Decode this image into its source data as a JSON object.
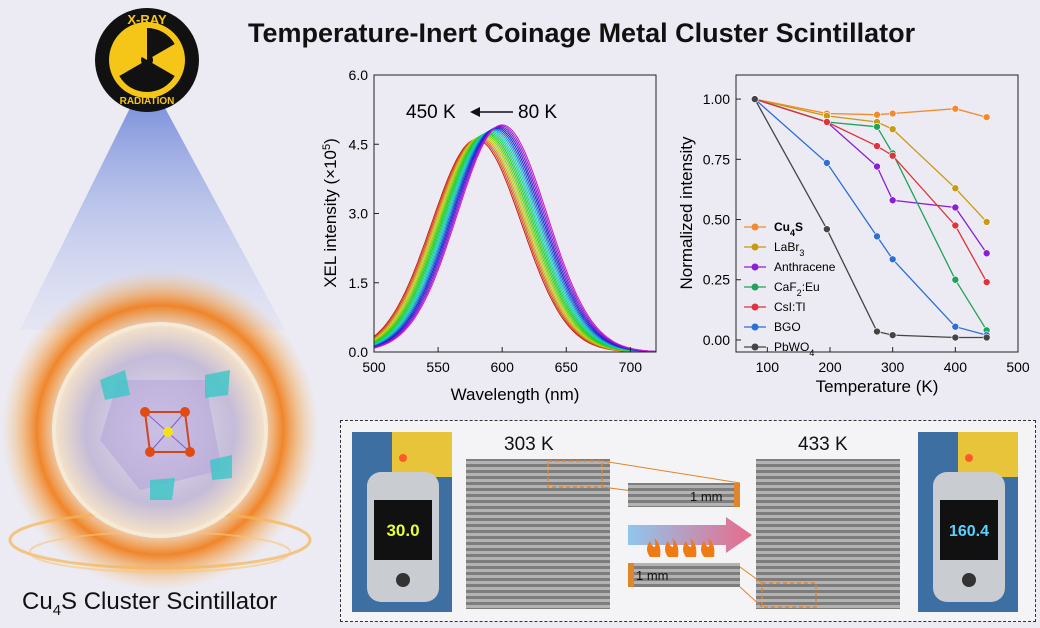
{
  "title": "Temperature-Inert Coinage Metal Cluster Scintillator",
  "badge": {
    "top": "X-RAY",
    "bottom": "RADIATION"
  },
  "caption": {
    "main": "Cu",
    "sub": "4",
    "rest": "S Cluster Scintillator"
  },
  "colors": {
    "flame": "#f07a14",
    "beam": "#8fa7e6",
    "arrow": "#e86b8a"
  },
  "chart_data": [
    {
      "type": "line",
      "xlabel": "Wavelength (nm)",
      "ylabel": "XEL intensity (×10",
      "ylabel_sup": "5",
      "ylabel_end": ")",
      "xticks": [
        "500",
        "550",
        "600",
        "650",
        "700"
      ],
      "yticks": [
        "0.0",
        "1.5",
        "3.0",
        "4.5",
        "6.0"
      ],
      "xlim": [
        500,
        720
      ],
      "ylim": [
        0,
        6.0
      ],
      "annotation_left": "450 K",
      "annotation_right": "80 K",
      "series_summary": {
        "count": 20,
        "peak_from": 580,
        "peak_to": 600,
        "height_from": 4.6,
        "height_to": 4.92,
        "sigma": 35
      }
    },
    {
      "type": "line",
      "xlabel": "Temperature (K)",
      "ylabel": "Normalized intensity",
      "xticks": [
        "100",
        "200",
        "300",
        "400",
        "500"
      ],
      "yticks": [
        "0.00",
        "0.25",
        "0.50",
        "0.75",
        "1.00"
      ],
      "xlim": [
        50,
        500
      ],
      "ylim": [
        -0.05,
        1.1
      ],
      "series": [
        {
          "name_main": "Cu",
          "name_sub": "4",
          "name_rest": "S",
          "bold": true,
          "color": "#f28a2e",
          "x": [
            80,
            195,
            275,
            300,
            400,
            450
          ],
          "y": [
            1.0,
            0.94,
            0.935,
            0.94,
            0.96,
            0.925
          ]
        },
        {
          "name_main": "LaBr",
          "name_sub": "3",
          "name_rest": "",
          "color": "#c89a10",
          "x": [
            80,
            195,
            275,
            300,
            400,
            450
          ],
          "y": [
            1.0,
            0.93,
            0.905,
            0.875,
            0.63,
            0.49
          ]
        },
        {
          "name_main": "Anthracene",
          "name_sub": "",
          "name_rest": "",
          "color": "#8a1fd6",
          "x": [
            80,
            195,
            275,
            300,
            400,
            450
          ],
          "y": [
            1.0,
            0.905,
            0.72,
            0.58,
            0.55,
            0.36
          ]
        },
        {
          "name_main": "CaF",
          "name_sub": "2",
          "name_rest": ":Eu",
          "color": "#1fa35a",
          "x": [
            80,
            195,
            275,
            300,
            400,
            450
          ],
          "y": [
            1.0,
            0.905,
            0.885,
            0.775,
            0.25,
            0.04
          ]
        },
        {
          "name_main": "CsI:Tl",
          "name_sub": "",
          "name_rest": "",
          "color": "#e0323a",
          "x": [
            80,
            195,
            275,
            300,
            400,
            450
          ],
          "y": [
            1.0,
            0.905,
            0.805,
            0.765,
            0.475,
            0.24
          ]
        },
        {
          "name_main": "BGO",
          "name_sub": "",
          "name_rest": "",
          "color": "#2c6fd6",
          "x": [
            80,
            195,
            275,
            300,
            400,
            450
          ],
          "y": [
            1.0,
            0.735,
            0.43,
            0.335,
            0.055,
            0.02
          ]
        },
        {
          "name_main": "PbWO",
          "name_sub": "4",
          "name_rest": "",
          "color": "#444444",
          "x": [
            80,
            195,
            275,
            300,
            400,
            450
          ],
          "y": [
            1.0,
            0.46,
            0.035,
            0.02,
            0.01,
            0.01
          ]
        }
      ]
    }
  ],
  "imaging": {
    "label_left": "303 K",
    "label_right": "433 K",
    "scale_top": "1 mm",
    "scale_bottom": "1 mm",
    "thermo_left_reading": "30.0",
    "thermo_right_reading": "160.4"
  }
}
